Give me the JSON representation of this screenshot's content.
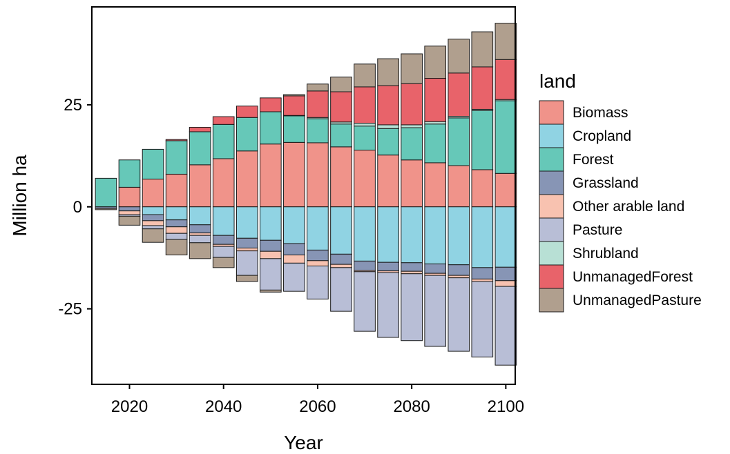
{
  "chart_data": {
    "type": "bar",
    "stacked": true,
    "xlabel": "Year",
    "ylabel": "Million ha",
    "xlim": [
      2012,
      2102
    ],
    "ylim": [
      -43.5,
      49
    ],
    "x_ticks": [
      2020,
      2040,
      2060,
      2080,
      2100
    ],
    "y_ticks": [
      25,
      0,
      -25
    ],
    "y_tick_labels": [
      "25",
      "0",
      "-25"
    ],
    "grid": false,
    "legend_title": "land",
    "legend_position": "right",
    "x": [
      2015,
      2020,
      2025,
      2030,
      2035,
      2040,
      2045,
      2050,
      2055,
      2060,
      2065,
      2070,
      2075,
      2080,
      2085,
      2090,
      2095,
      2100
    ],
    "series": [
      {
        "name": "Biomass",
        "color": "#F0938A",
        "values": [
          0,
          4.8,
          6.8,
          8,
          10.3,
          11.8,
          13.7,
          15.4,
          15.8,
          15.7,
          14.7,
          13.9,
          12.7,
          11.5,
          10.8,
          10.1,
          9.1,
          8.2
        ]
      },
      {
        "name": "Cropland",
        "color": "#90D3E3",
        "values": [
          0,
          0,
          -1.9,
          -3.2,
          -4.4,
          -7,
          -7.7,
          -8.2,
          -9,
          -10.6,
          -11.6,
          -13.3,
          -13.6,
          -13.7,
          -14,
          -14.2,
          -14.9,
          -14.8
        ]
      },
      {
        "name": "Forest",
        "color": "#66C8B8",
        "values": [
          7,
          6.7,
          7.3,
          8.2,
          8.1,
          8.4,
          8.2,
          7.9,
          6.5,
          5.9,
          5.6,
          5.9,
          6.5,
          7.9,
          9.5,
          11.7,
          14.5,
          17.8
        ]
      },
      {
        "name": "Grassland",
        "color": "#8795B5",
        "values": [
          -0.4,
          -1,
          -1.5,
          -1.7,
          -2,
          -2.2,
          -2.4,
          -2.7,
          -2.8,
          -2.6,
          -2.5,
          -2.3,
          -2.1,
          -2.1,
          -2.3,
          -2.6,
          -2.8,
          -3.3
        ]
      },
      {
        "name": "Other arable land",
        "color": "#F8C2B0",
        "values": [
          0,
          -0.9,
          -1.2,
          -1.6,
          -0.6,
          -0.5,
          -0.7,
          -1.8,
          -2,
          -1.3,
          -0.8,
          -0.3,
          -0.4,
          -0.6,
          -0.5,
          -0.6,
          -0.6,
          -1.4
        ]
      },
      {
        "name": "Pasture",
        "color": "#B8BED6",
        "values": [
          0,
          -0.4,
          -0.8,
          -1.5,
          -1.8,
          -2.7,
          -6,
          -7.7,
          -6.9,
          -8.1,
          -10.7,
          -14.6,
          -15.9,
          -16.4,
          -17.4,
          -18,
          -18.5,
          -19.3
        ]
      },
      {
        "name": "Shrubland",
        "color": "#B8E0D5",
        "values": [
          0,
          0,
          0,
          0,
          0,
          0,
          0,
          0,
          0.1,
          0.3,
          0.5,
          0.7,
          0.9,
          0.7,
          0.6,
          0.4,
          0.3,
          0.3
        ]
      },
      {
        "name": "UnmanagedForest",
        "color": "#E8636A",
        "values": [
          0,
          0,
          0,
          0.3,
          1.1,
          1.9,
          2.8,
          3.4,
          4.8,
          6.5,
          7.4,
          8.9,
          9.6,
          10.1,
          10.6,
          10.6,
          10.4,
          9.8
        ]
      },
      {
        "name": "UnmanagedPasture",
        "color": "#B09F8E",
        "values": [
          -0.3,
          -2.2,
          -3.3,
          -3.8,
          -3.9,
          -2.5,
          -1.5,
          -0.5,
          0.3,
          1.7,
          3.6,
          5.6,
          6.6,
          7.3,
          7.9,
          8.3,
          8.6,
          8.9
        ]
      }
    ]
  }
}
